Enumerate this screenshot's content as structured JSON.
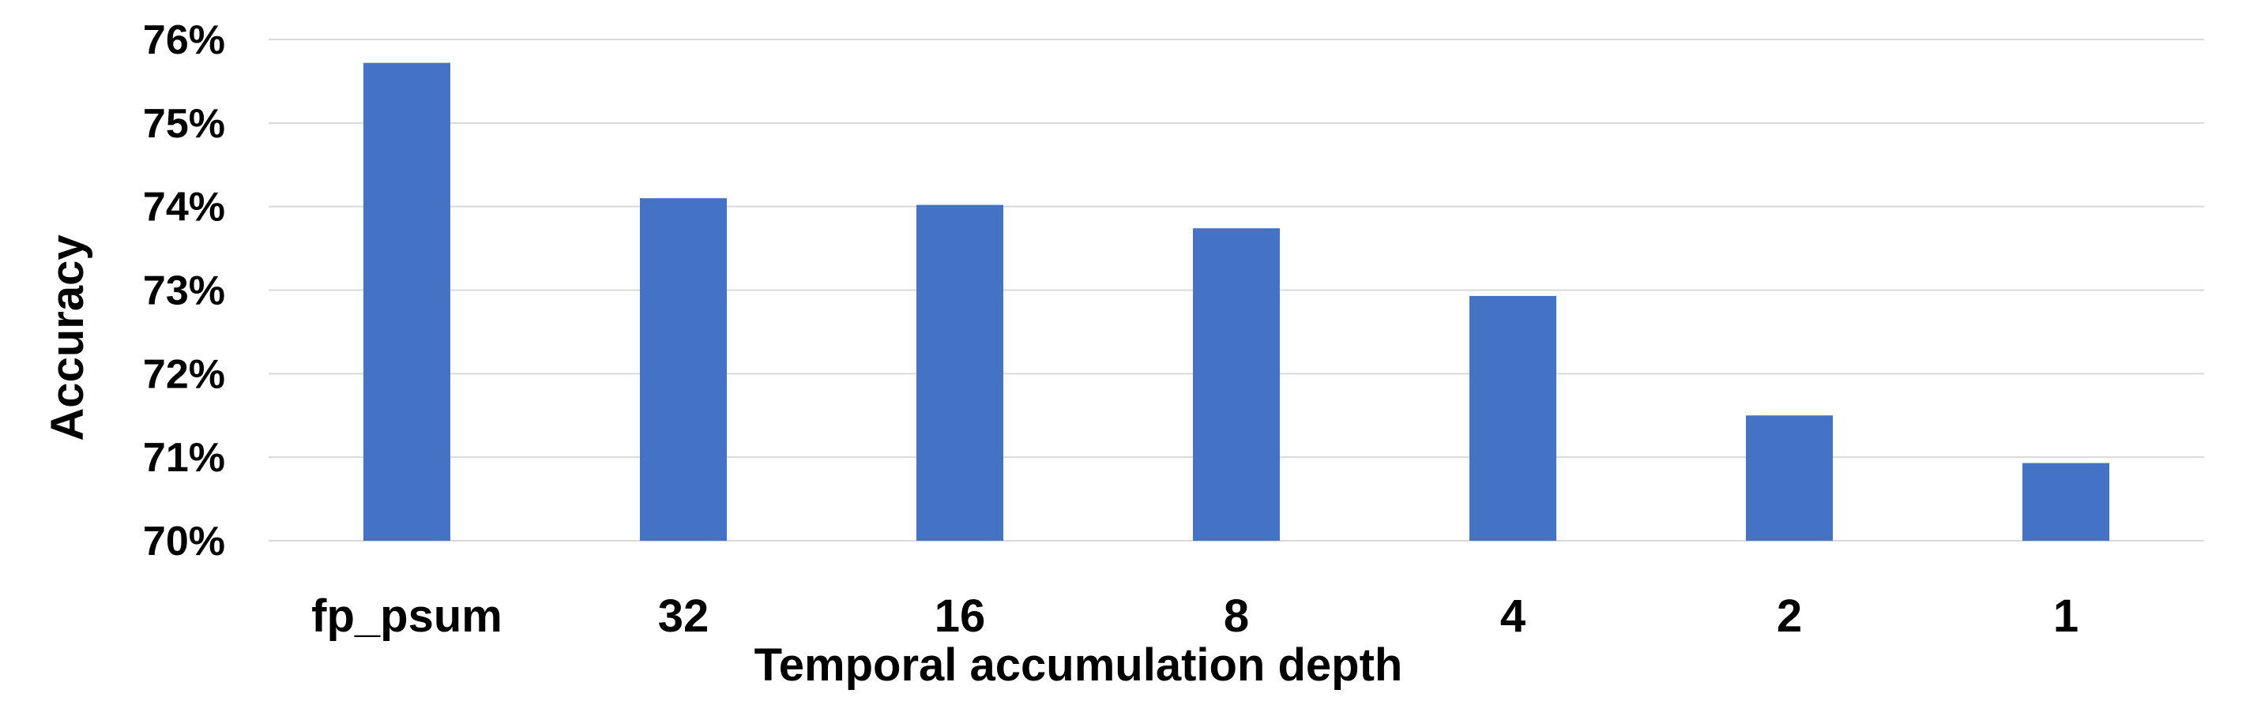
{
  "chart_data": {
    "type": "bar",
    "categories": [
      "fp_psum",
      "32",
      "16",
      "8",
      "4",
      "2",
      "1"
    ],
    "values": [
      75.72,
      74.1,
      74.02,
      73.74,
      72.93,
      71.5,
      70.93
    ],
    "xlabel": "Temporal accumulation depth",
    "ylabel": "Accuracy",
    "ylim": [
      70,
      76
    ],
    "yticks": [
      70,
      71,
      72,
      73,
      74,
      75,
      76
    ],
    "ytick_labels": [
      "70%",
      "71%",
      "72%",
      "73%",
      "74%",
      "75%",
      "76%"
    ],
    "grid": true,
    "legend": "none",
    "bar_color": "#4472C4"
  }
}
